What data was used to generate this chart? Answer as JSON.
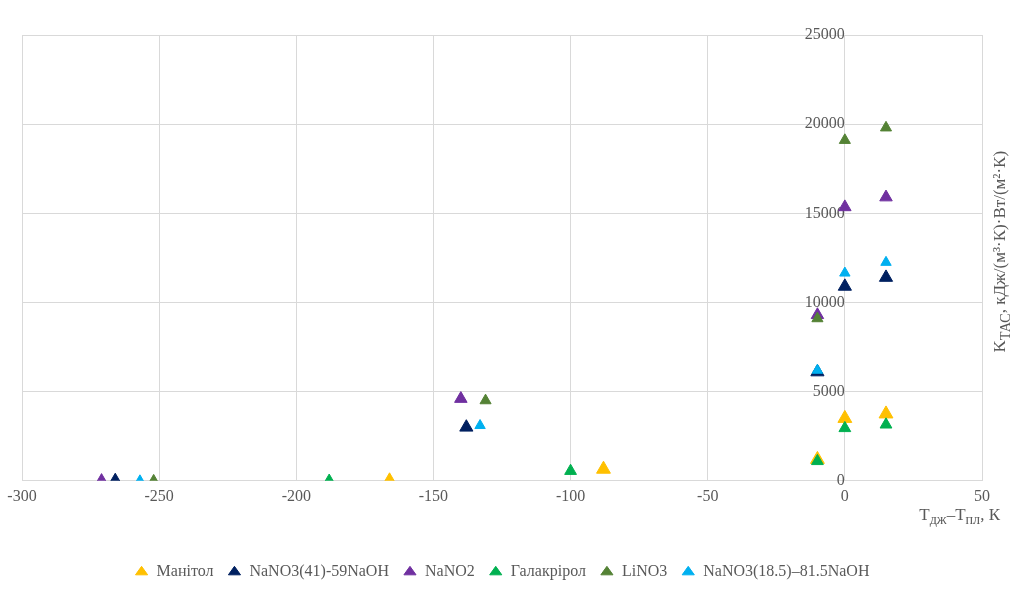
{
  "chart_data": {
    "type": "scatter",
    "xlabel": "T$_{дж}$–T$_{пл}$, К",
    "ylabel": "K$_{ТАС}$, кДж/(м³·К)·Вт/(м²·К)",
    "xlim": [
      -300,
      50
    ],
    "xticks": [
      -300,
      -250,
      -200,
      -150,
      -100,
      -50,
      0,
      50
    ],
    "ylim": [
      0,
      25000
    ],
    "yticks": [
      0,
      5000,
      10000,
      15000,
      20000,
      25000
    ],
    "grid": true,
    "legend": "bottom",
    "marker": "triangle",
    "series": [
      {
        "name": "Манітол",
        "color": "#ffc000",
        "x": [
          -166,
          -88,
          -10,
          0,
          15
        ],
        "values": [
          0,
          650,
          1200,
          3500,
          3750
        ]
      },
      {
        "name": "NaNO3(41)-59NaOH",
        "color": "#002060",
        "x": [
          -266,
          -138,
          -10,
          0,
          15
        ],
        "values": [
          0,
          3000,
          6100,
          10900,
          11400
        ]
      },
      {
        "name": "NaNO2",
        "color": "#7030a0",
        "x": [
          -271,
          -140,
          -10,
          0,
          15
        ],
        "values": [
          0,
          4600,
          9300,
          15350,
          15900
        ]
      },
      {
        "name": "Галакрірол",
        "color": "#00b050",
        "x": [
          -188,
          -100,
          -10,
          0,
          15
        ],
        "values": [
          0,
          550,
          1100,
          2950,
          3150
        ]
      },
      {
        "name": "LiNO3",
        "color": "#548235",
        "x": [
          -252,
          -131,
          -10,
          0,
          15
        ],
        "values": [
          0,
          4500,
          9100,
          19100,
          19800
        ]
      },
      {
        "name": "NaNO3(18.5)–81.5NaOH",
        "color": "#00b0f0",
        "x": [
          -257,
          -133,
          -10,
          0,
          15
        ],
        "values": [
          0,
          3100,
          6200,
          11650,
          12250
        ]
      }
    ]
  }
}
